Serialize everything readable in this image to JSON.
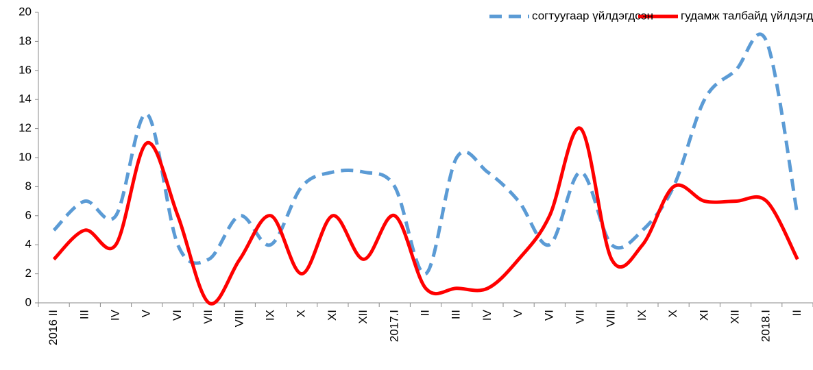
{
  "chart_data": {
    "type": "line",
    "categories": [
      "2016 II",
      "III",
      "IV",
      "V",
      "VI",
      "VII",
      "VIII",
      "IX",
      "X",
      "XI",
      "XII",
      "2017.I",
      "II",
      "III",
      "IV",
      "V",
      "VI",
      "VII",
      "VIII",
      "IX",
      "X",
      "XI",
      "XII",
      "2018.I",
      "II"
    ],
    "series": [
      {
        "name": "согтуугаар үйлдэгдсэн",
        "color": "#5b9bd5",
        "dash": true,
        "values": [
          5,
          7,
          6,
          13,
          4,
          3,
          6,
          4,
          8,
          9,
          9,
          8,
          2,
          10,
          9,
          7,
          4,
          9,
          4,
          5,
          8,
          14,
          16,
          18,
          6
        ]
      },
      {
        "name": "гудамж талбайд үйлдэгдсэн",
        "color": "#ff0000",
        "dash": false,
        "values": [
          3,
          5,
          4,
          11,
          6,
          0,
          3,
          6,
          2,
          6,
          3,
          6,
          1,
          1,
          1,
          3,
          6,
          12,
          3,
          4,
          8,
          7,
          7,
          7,
          3
        ]
      }
    ],
    "ylim": [
      0,
      20
    ],
    "yticks": [
      0,
      2,
      4,
      6,
      8,
      10,
      12,
      14,
      16,
      18,
      20
    ],
    "smooth": true,
    "legend": "top-right",
    "grid": false
  }
}
